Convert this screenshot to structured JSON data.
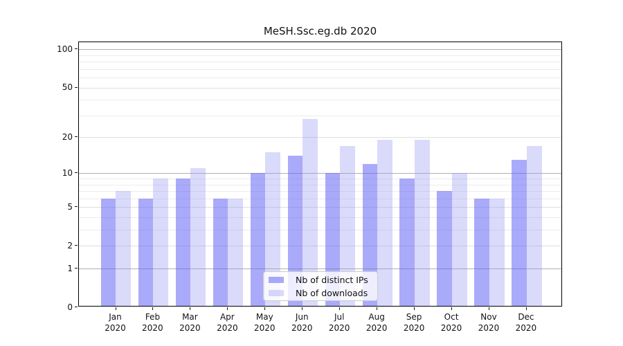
{
  "title": "MeSH.Ssc.eg.db 2020",
  "chart_data": {
    "type": "bar",
    "title": "MeSH.Ssc.eg.db 2020",
    "categories": [
      "Jan 2020",
      "Feb 2020",
      "Mar 2020",
      "Apr 2020",
      "May 2020",
      "Jun 2020",
      "Jul 2020",
      "Aug 2020",
      "Sep 2020",
      "Oct 2020",
      "Nov 2020",
      "Dec 2020"
    ],
    "series": [
      {
        "name": "Nb of distinct IPs",
        "color": "rgba(100,100,246,0.55)",
        "values": [
          6,
          6,
          9,
          6,
          10,
          14,
          10,
          12,
          9,
          7,
          6,
          13
        ]
      },
      {
        "name": "Nb of downloads",
        "color": "rgba(150,150,240,0.35)",
        "values": [
          7,
          9,
          11,
          6,
          15,
          28,
          17,
          19,
          19,
          10,
          6,
          17
        ]
      }
    ],
    "xlabel": "",
    "ylabel": "",
    "yscale": "log1p",
    "ylim": [
      0,
      114
    ],
    "y_ticks": [
      100,
      50,
      20,
      10,
      5,
      2,
      1,
      0
    ],
    "grid": {
      "major_lines": [
        1,
        10,
        100
      ],
      "sub_lines": [
        2,
        5,
        20,
        50
      ],
      "minor_lines": [
        3,
        4,
        6,
        7,
        8,
        9,
        30,
        40,
        60,
        70,
        80,
        90
      ],
      "grid_on": true
    },
    "legend_position": "lower center",
    "bar_group": "side-by-side, dark series left of tick, light series right of tick"
  },
  "colors": {
    "bar_dark": "rgba(100,100,246,0.55)",
    "bar_light": "rgba(150,150,240,0.35)",
    "grid_major": "#b0b0b0",
    "grid_sub": "#dedede",
    "grid_minor": "#ececec",
    "axis_frame": "#000000",
    "legend_border": "#cccccc"
  }
}
